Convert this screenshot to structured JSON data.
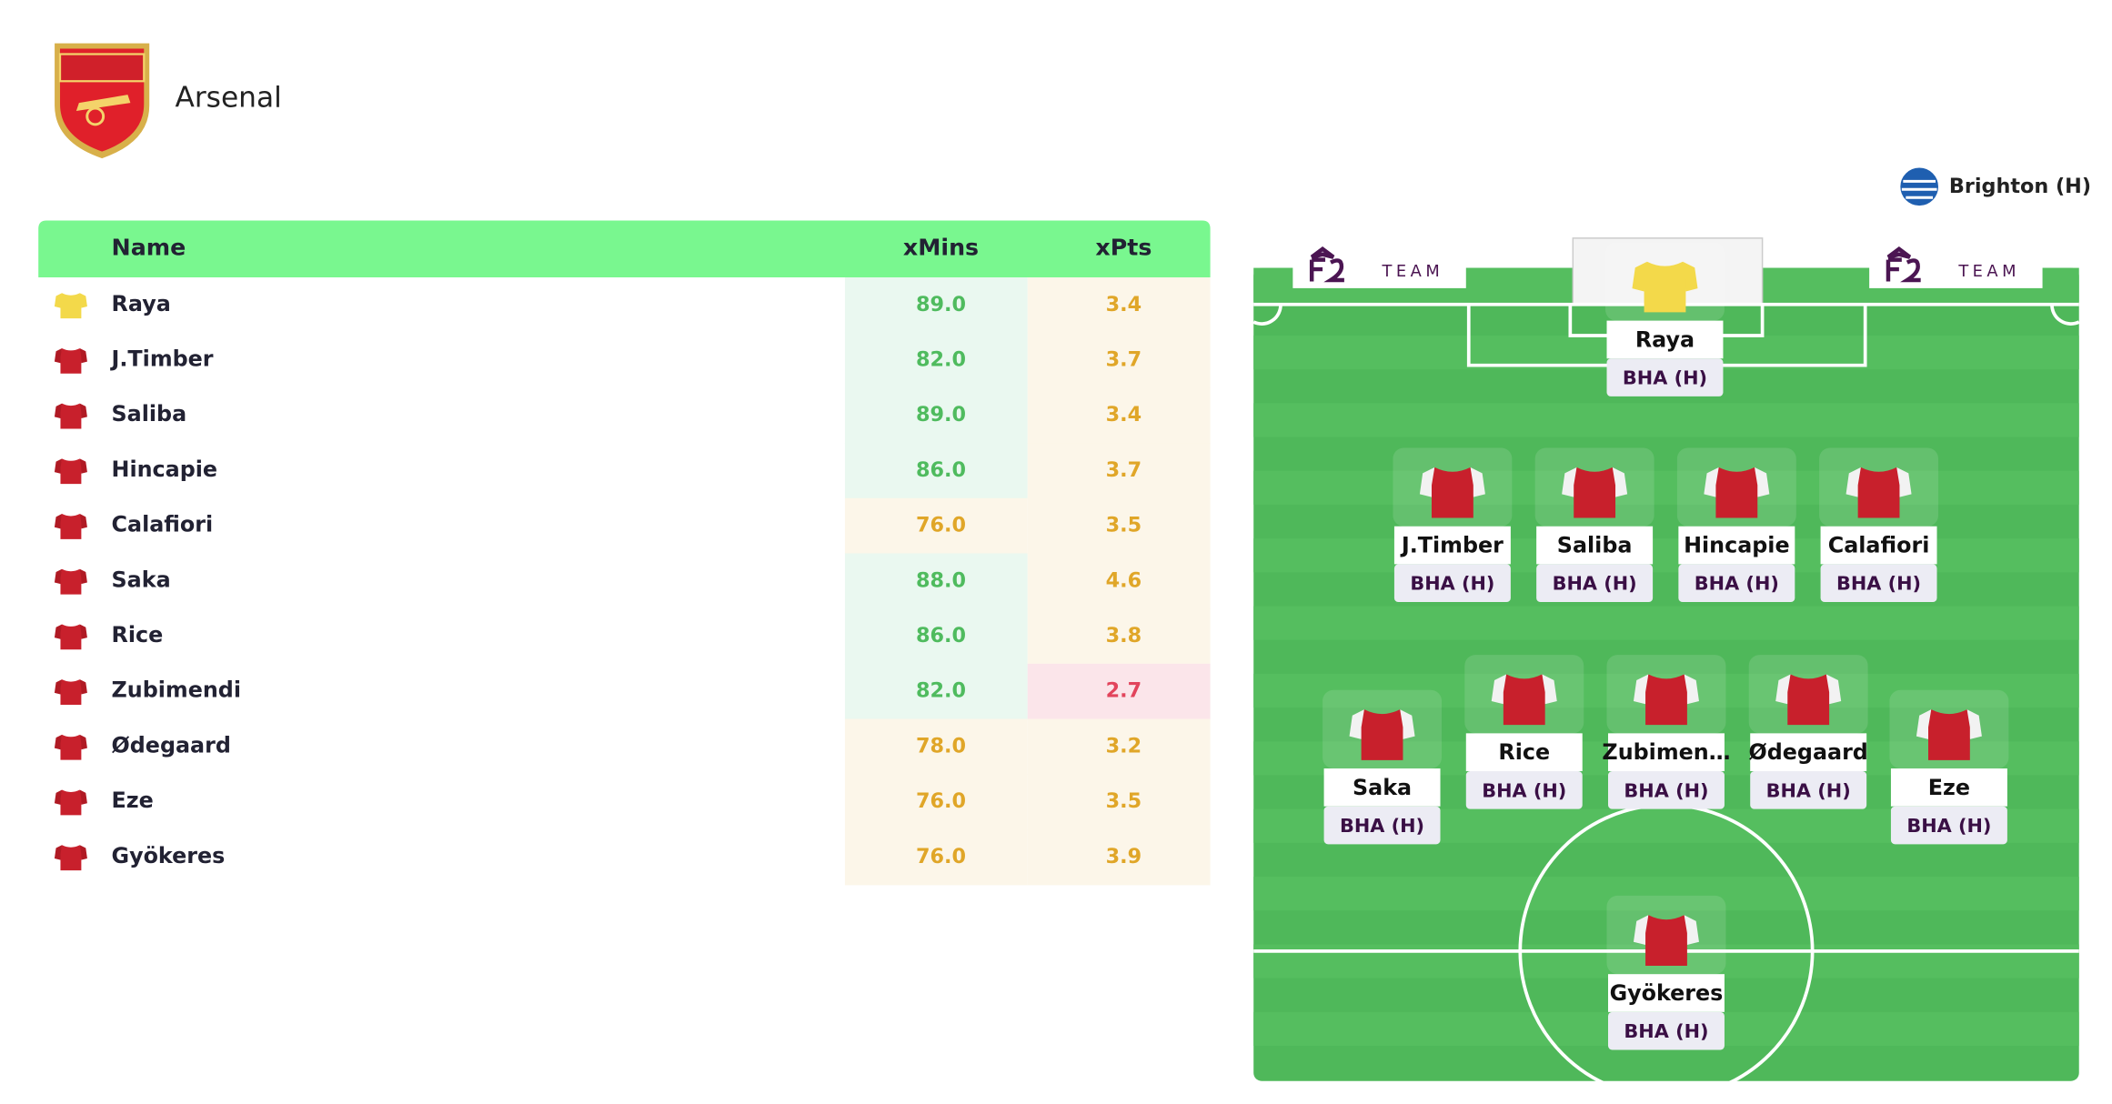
{
  "header": {
    "team": "Arsenal"
  },
  "table": {
    "columns": [
      "Name",
      "xMins",
      "xPts"
    ],
    "rows": [
      [
        "Raya",
        "89.0",
        "3.4"
      ],
      [
        "J.Timber",
        "82.0",
        "3.7"
      ],
      [
        "Saliba",
        "89.0",
        "3.4"
      ],
      [
        "Hincapie",
        "86.0",
        "3.7"
      ],
      [
        "Calafiori",
        "76.0",
        "3.5"
      ],
      [
        "Saka",
        "88.0",
        "4.6"
      ],
      [
        "Rice",
        "86.0",
        "3.8"
      ],
      [
        "Zubimendi",
        "82.0",
        "2.7"
      ],
      [
        "Ødegaard",
        "78.0",
        "3.2"
      ],
      [
        "Eze",
        "76.0",
        "3.5"
      ],
      [
        "Gyökeres",
        "76.0",
        "3.9"
      ]
    ]
  },
  "pitch": {
    "opponent": "Brighton (H)",
    "brand": "TEAM",
    "players": [
      {
        "name": "Raya",
        "fixture": "BHA (H)"
      },
      {
        "name": "J.Timber",
        "fixture": "BHA (H)"
      },
      {
        "name": "Saliba",
        "fixture": "BHA (H)"
      },
      {
        "name": "Hincapie",
        "fixture": "BHA (H)"
      },
      {
        "name": "Calafiori",
        "fixture": "BHA (H)"
      },
      {
        "name": "Saka",
        "fixture": "BHA (H)"
      },
      {
        "name": "Rice",
        "fixture": "BHA (H)"
      },
      {
        "name": "Zubimen…",
        "fixture": "BHA (H)"
      },
      {
        "name": "Ødegaard",
        "fixture": "BHA (H)"
      },
      {
        "name": "Eze",
        "fixture": "BHA (H)"
      },
      {
        "name": "Gyökeres",
        "fixture": "BHA (H)"
      }
    ]
  }
}
